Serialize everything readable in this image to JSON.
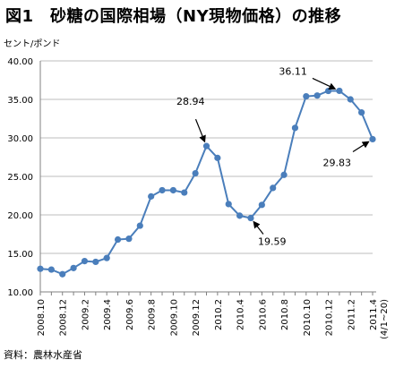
{
  "title": "図1　砂糖の国際相場（NY現物価格）の推移",
  "unit_label": "セント/ポンド",
  "source": "資料：農林水産省",
  "chart_data": {
    "type": "line",
    "color": "#4a7ebb",
    "ylim": [
      10,
      40
    ],
    "yticks": [
      "10.00",
      "15.00",
      "20.00",
      "25.00",
      "30.00",
      "35.00",
      "40.00"
    ],
    "xtick_labels": [
      "2008.10",
      "2008.12",
      "2009.2",
      "2009.4",
      "2009.6",
      "2009.8",
      "2009.10",
      "2009.12",
      "2010.2",
      "2010.4",
      "2010.6",
      "2010.8",
      "2010.10",
      "2010.12",
      "2011.2",
      "2011.4",
      "(4/1~20)"
    ],
    "x": [
      "2008.10",
      "2008.11",
      "2008.12",
      "2009.1",
      "2009.2",
      "2009.3",
      "2009.4",
      "2009.5",
      "2009.6",
      "2009.7",
      "2009.8",
      "2009.9",
      "2009.10",
      "2009.11",
      "2009.12",
      "2010.1",
      "2010.2",
      "2010.3",
      "2010.4",
      "2010.5",
      "2010.6",
      "2010.7",
      "2010.8",
      "2010.9",
      "2010.10",
      "2010.11",
      "2010.12",
      "2011.1",
      "2011.2",
      "2011.3",
      "2011.4"
    ],
    "values": [
      13.0,
      12.9,
      12.3,
      13.1,
      14.0,
      13.9,
      14.4,
      16.8,
      16.9,
      18.6,
      22.4,
      23.2,
      23.2,
      22.9,
      25.4,
      28.94,
      27.4,
      21.4,
      19.9,
      19.59,
      21.3,
      23.5,
      25.2,
      31.3,
      35.4,
      35.5,
      36.1,
      36.11,
      35.0,
      33.3,
      29.83
    ],
    "annotations": [
      {
        "index": 15,
        "label": "28.94"
      },
      {
        "index": 19,
        "label": "19.59"
      },
      {
        "index": 27,
        "label": "36.11"
      },
      {
        "index": 30,
        "label": "29.83"
      }
    ]
  }
}
